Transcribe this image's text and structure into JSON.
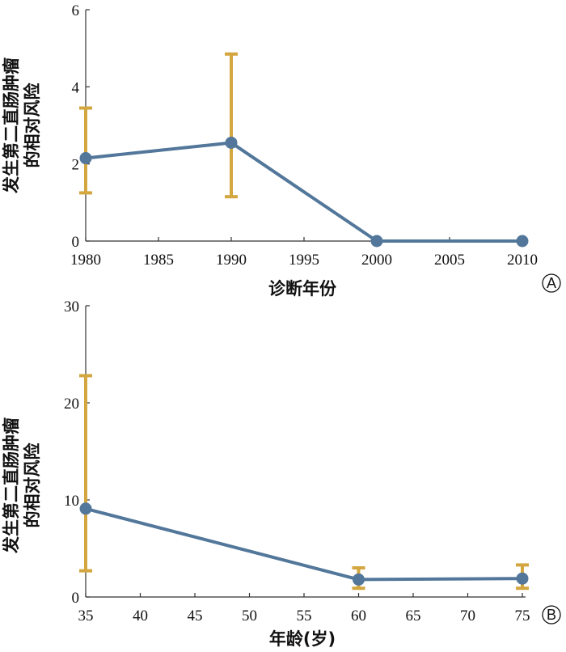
{
  "colors": {
    "line": "#52779a",
    "marker": "#52779a",
    "error_bar": "#d3a640",
    "axis": "#333333"
  },
  "chart_data": [
    {
      "type": "line",
      "panel_label": "A",
      "xlabel": "诊断年份",
      "ylabel_lines": [
        "发生第二直肠肿瘤",
        "的相对风险"
      ],
      "xlim": [
        1980,
        2010
      ],
      "ylim": [
        0,
        6
      ],
      "xticks": [
        1980,
        1985,
        1990,
        1995,
        2000,
        2005,
        2010
      ],
      "yticks": [
        0,
        2,
        4,
        6
      ],
      "tick_labels_x": [
        "1980",
        "1985",
        "1990",
        "1995",
        "2000",
        "2005",
        "2010"
      ],
      "tick_labels_y": [
        "0",
        "2",
        "4",
        "6"
      ],
      "grid": false,
      "legend": "none",
      "series": [
        {
          "x": [
            1980,
            1990,
            2000,
            2010
          ],
          "y": [
            2.15,
            2.55,
            0,
            0
          ],
          "err_low": [
            1.25,
            1.15,
            null,
            null
          ],
          "err_high": [
            3.45,
            4.85,
            null,
            null
          ]
        }
      ]
    },
    {
      "type": "line",
      "panel_label": "B",
      "xlabel": "年龄(岁)",
      "ylabel_lines": [
        "发生第二直肠肿瘤",
        "的相对风险"
      ],
      "xlim": [
        35,
        75
      ],
      "ylim": [
        0,
        30
      ],
      "xticks": [
        35,
        40,
        45,
        50,
        55,
        60,
        65,
        70,
        75
      ],
      "yticks": [
        0,
        10,
        20,
        30
      ],
      "tick_labels_x": [
        "35",
        "40",
        "45",
        "50",
        "55",
        "60",
        "65",
        "70",
        "75"
      ],
      "tick_labels_y": [
        "0",
        "10",
        "20",
        "30"
      ],
      "grid": false,
      "legend": "none",
      "series": [
        {
          "x": [
            35,
            60,
            75
          ],
          "y": [
            9.1,
            1.8,
            1.9
          ],
          "err_low": [
            2.7,
            0.9,
            0.9
          ],
          "err_high": [
            22.8,
            3.0,
            3.3
          ]
        }
      ]
    }
  ]
}
